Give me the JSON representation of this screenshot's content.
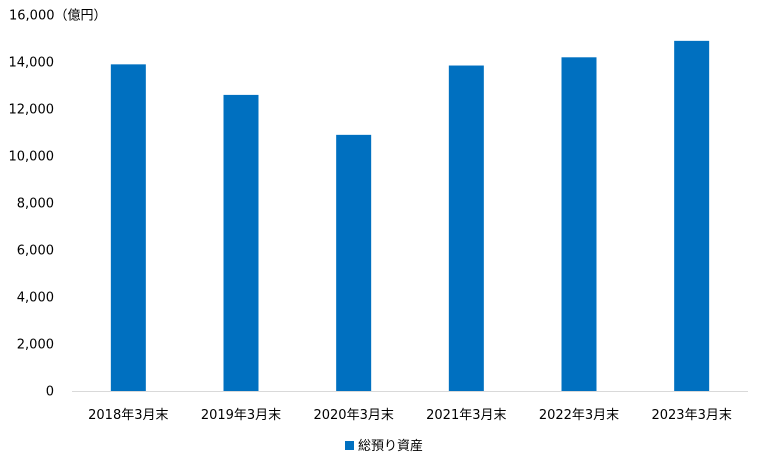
{
  "chart_data": {
    "type": "bar",
    "title": "",
    "xlabel": "",
    "ylabel": "",
    "y_unit_label": "（億円）",
    "categories": [
      "2018年3月末",
      "2019年3月末",
      "2020年3月末",
      "2021年3月末",
      "2022年3月末",
      "2023年3月末"
    ],
    "series": [
      {
        "name": "総預り資産",
        "values": [
          13900,
          12600,
          10900,
          13850,
          14200,
          14900
        ],
        "color": "#0070C0"
      }
    ],
    "ylim": [
      0,
      16000
    ],
    "yticks": [
      0,
      2000,
      4000,
      6000,
      8000,
      10000,
      12000,
      14000,
      16000
    ],
    "ytick_labels": [
      "0",
      "2,000",
      "4,000",
      "6,000",
      "8,000",
      "10,000",
      "12,000",
      "14,000",
      "16,000"
    ],
    "grid": false,
    "legend_position": "bottom-center"
  }
}
